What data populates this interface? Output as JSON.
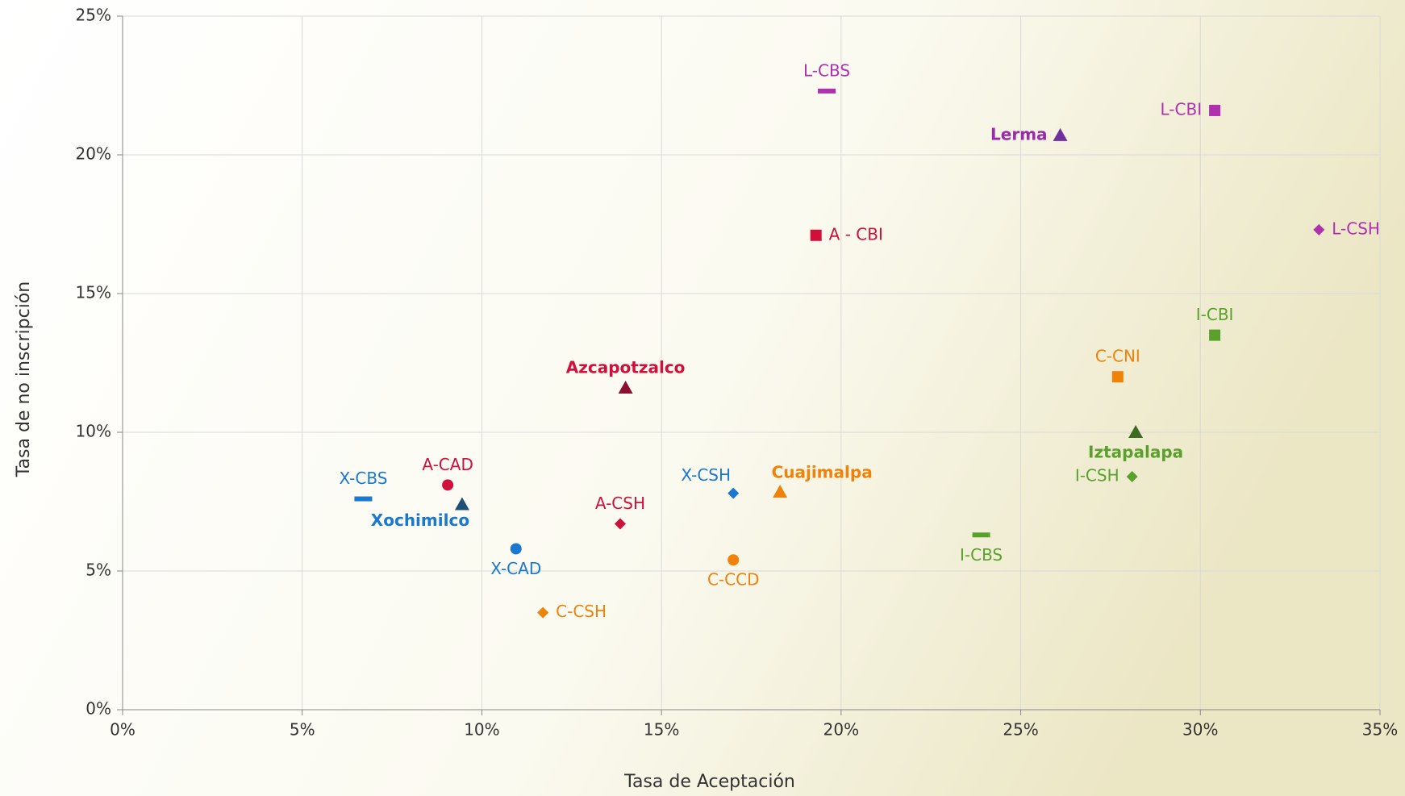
{
  "chart_data": {
    "type": "scatter",
    "xlabel": "Tasa de Aceptación",
    "ylabel": "Tasa de no inscripción",
    "xlim": [
      0,
      35
    ],
    "ylim": [
      0,
      25
    ],
    "xticks": [
      {
        "value": 0,
        "label": "0%"
      },
      {
        "value": 5,
        "label": "5%"
      },
      {
        "value": 10,
        "label": "10%"
      },
      {
        "value": 15,
        "label": "15%"
      },
      {
        "value": 20,
        "label": "20%"
      },
      {
        "value": 25,
        "label": "25%"
      },
      {
        "value": 30,
        "label": "30%"
      },
      {
        "value": 35,
        "label": "35%"
      }
    ],
    "yticks": [
      {
        "value": 0,
        "label": "0%"
      },
      {
        "value": 5,
        "label": "5%"
      },
      {
        "value": 10,
        "label": "10%"
      },
      {
        "value": 15,
        "label": "15%"
      },
      {
        "value": 20,
        "label": "20%"
      },
      {
        "value": 25,
        "label": "25%"
      }
    ],
    "grid": true,
    "points": [
      {
        "label": "L-CBS",
        "x": 19.6,
        "y": 22.3,
        "marker": "dash",
        "color": "#b030b0",
        "label_pos": "above"
      },
      {
        "label": "L-CBI",
        "x": 30.4,
        "y": 21.6,
        "marker": "square",
        "color": "#b030b0",
        "label_pos": "left"
      },
      {
        "label": "Lerma",
        "x": 26.1,
        "y": 20.7,
        "marker": "triangle",
        "color": "#7030a0",
        "label_color": "#9a2aa8",
        "bold": true,
        "label_pos": "left"
      },
      {
        "label": "L-CSH",
        "x": 33.3,
        "y": 17.3,
        "marker": "diamond",
        "color": "#b030b0",
        "label_pos": "right"
      },
      {
        "label": "A - CBI",
        "x": 19.3,
        "y": 17.1,
        "marker": "square",
        "color": "#d0103a",
        "label_pos": "right"
      },
      {
        "label": "I-CBI",
        "x": 30.4,
        "y": 13.5,
        "marker": "square",
        "color": "#5aa02c",
        "label_pos": "above"
      },
      {
        "label": "C-CNI",
        "x": 27.7,
        "y": 12.0,
        "marker": "square",
        "color": "#f0820a",
        "label_pos": "above"
      },
      {
        "label": "Azcapotzalco",
        "x": 14.0,
        "y": 11.6,
        "marker": "triangle",
        "color": "#8b1030",
        "label_color": "#d0103a",
        "bold": true,
        "label_pos": "above"
      },
      {
        "label": "Iztapalapa",
        "x": 28.2,
        "y": 10.0,
        "marker": "triangle",
        "color": "#3d6b22",
        "label_color": "#5aa02c",
        "bold": true,
        "label_pos": "below"
      },
      {
        "label": "I-CSH",
        "x": 28.1,
        "y": 8.4,
        "marker": "diamond",
        "color": "#5aa02c",
        "label_pos": "left"
      },
      {
        "label": "A-CAD",
        "x": 9.05,
        "y": 8.1,
        "marker": "circle",
        "color": "#d0103a",
        "label_pos": "above"
      },
      {
        "label": "X-CBS",
        "x": 6.7,
        "y": 7.6,
        "marker": "dash",
        "color": "#1a78d0",
        "label_pos": "above"
      },
      {
        "label": "Xochimilco",
        "x": 9.45,
        "y": 7.4,
        "marker": "triangle",
        "color": "#1f4e79",
        "label_color": "#1a78d0",
        "bold": true,
        "label_pos": "below-left"
      },
      {
        "label": "X-CSH",
        "x": 17.0,
        "y": 7.8,
        "marker": "diamond",
        "color": "#1a78d0",
        "label_pos": "above-left"
      },
      {
        "label": "Cuajimalpa",
        "x": 18.3,
        "y": 7.85,
        "marker": "triangle",
        "color": "#f0820a",
        "bold": true,
        "label_pos": "above-right"
      },
      {
        "label": "A-CSH",
        "x": 13.85,
        "y": 6.7,
        "marker": "diamond",
        "color": "#d0103a",
        "label_pos": "above"
      },
      {
        "label": "I-CBS",
        "x": 23.9,
        "y": 6.3,
        "marker": "dash",
        "color": "#5aa02c",
        "label_pos": "below"
      },
      {
        "label": "X-CAD",
        "x": 10.95,
        "y": 5.8,
        "marker": "circle",
        "color": "#1a78d0",
        "label_pos": "below"
      },
      {
        "label": "C-CCD",
        "x": 17.0,
        "y": 5.4,
        "marker": "circle",
        "color": "#f0820a",
        "label_pos": "below"
      },
      {
        "label": "C-CSH",
        "x": 11.7,
        "y": 3.5,
        "marker": "diamond",
        "color": "#f0820a",
        "label_pos": "right"
      }
    ]
  }
}
